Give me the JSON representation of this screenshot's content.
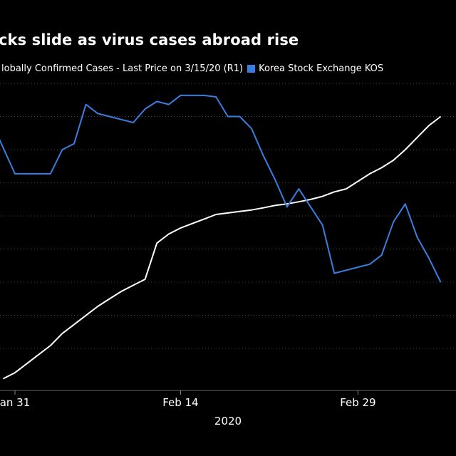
{
  "title": "cks slide as virus cases abroad rise",
  "legend": {
    "series_1": "lobally Confirmed Cases - Last Price on 3/15/20 (R1)",
    "series_2": "Korea Stock Exchange KOS"
  },
  "colors": {
    "background": "#000000",
    "cases": "#ffffff",
    "kospi": "#3a7fe0",
    "grid": "#444444"
  },
  "chart_data": {
    "type": "line",
    "title": "cks slide as virus cases abroad rise",
    "xlabel": "2020",
    "x_ticks": [
      {
        "day": 1,
        "label": "an 31"
      },
      {
        "day": 15,
        "label": "Feb 14"
      },
      {
        "day": 30,
        "label": "Feb 29"
      }
    ],
    "x_range": [
      0,
      37
    ],
    "y_index_range": [
      0,
      100
    ],
    "gridlines": 9,
    "series": [
      {
        "name": "lobally Confirmed Cases - Last Price on 3/15/20 (R1)",
        "color": "#ffffff",
        "points": [
          [
            0,
            2
          ],
          [
            1,
            4
          ],
          [
            2,
            7
          ],
          [
            3,
            10
          ],
          [
            4,
            13
          ],
          [
            5,
            17
          ],
          [
            6,
            20
          ],
          [
            7,
            23
          ],
          [
            8,
            26
          ],
          [
            9,
            28.5
          ],
          [
            10,
            31
          ],
          [
            11,
            33
          ],
          [
            12,
            35
          ],
          [
            13,
            47
          ],
          [
            14,
            50
          ],
          [
            15,
            52
          ],
          [
            16,
            53.5
          ],
          [
            17,
            55
          ],
          [
            18,
            56.5
          ],
          [
            19,
            57
          ],
          [
            20,
            57.5
          ],
          [
            21,
            58
          ],
          [
            22,
            58.7
          ],
          [
            23,
            59.5
          ],
          [
            24,
            60
          ],
          [
            25,
            60.7
          ],
          [
            26,
            61.5
          ],
          [
            27,
            62.5
          ],
          [
            28,
            64
          ],
          [
            29,
            65
          ],
          [
            30,
            67.5
          ],
          [
            31,
            70
          ],
          [
            32,
            72
          ],
          [
            33,
            74.5
          ],
          [
            34,
            78
          ],
          [
            35,
            82
          ],
          [
            36,
            86
          ],
          [
            37,
            89
          ]
        ]
      },
      {
        "name": "Korea Stock Exchange KOS",
        "color": "#3a7fe0",
        "points": [
          [
            -0.5,
            83
          ],
          [
            1,
            70
          ],
          [
            3,
            70
          ],
          [
            4,
            70
          ],
          [
            5,
            78
          ],
          [
            6,
            80
          ],
          [
            7,
            93
          ],
          [
            8,
            90
          ],
          [
            9,
            89
          ],
          [
            10,
            88
          ],
          [
            11,
            87
          ],
          [
            12,
            91.5
          ],
          [
            13,
            94
          ],
          [
            14,
            93
          ],
          [
            15,
            96
          ],
          [
            16,
            96
          ],
          [
            17,
            96
          ],
          [
            18,
            95.5
          ],
          [
            19,
            89
          ],
          [
            20,
            89
          ],
          [
            21,
            85
          ],
          [
            22,
            76
          ],
          [
            23,
            68
          ],
          [
            24,
            59
          ],
          [
            25,
            65
          ],
          [
            26,
            59
          ],
          [
            27,
            53
          ],
          [
            28,
            37
          ],
          [
            29,
            38
          ],
          [
            30,
            39
          ],
          [
            31,
            40
          ],
          [
            32,
            43
          ],
          [
            33,
            54
          ],
          [
            34,
            60
          ],
          [
            35,
            49
          ],
          [
            36,
            42
          ],
          [
            37,
            34
          ]
        ]
      }
    ]
  }
}
